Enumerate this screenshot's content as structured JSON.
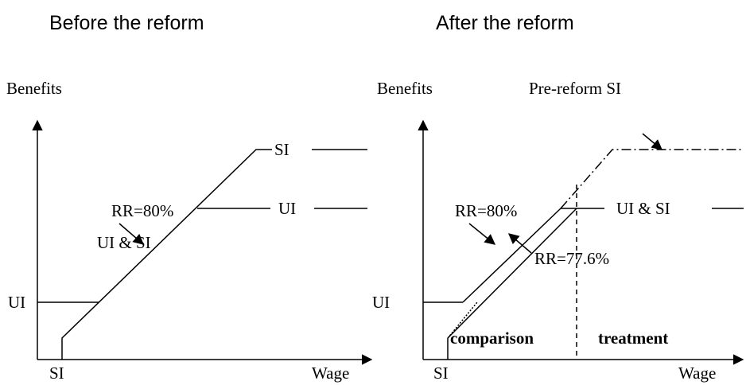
{
  "left": {
    "title": "Before the reform",
    "y_axis": "Benefits",
    "x_axis": "Wage",
    "x_tick": "SI",
    "y_tick": "UI",
    "labels": {
      "si": "SI",
      "ui": "UI",
      "ui_si": "UI & SI",
      "rr": "RR=80%"
    }
  },
  "right": {
    "title": "After the reform",
    "y_axis": "Benefits",
    "x_axis": "Wage",
    "x_tick": "SI",
    "y_tick": "UI",
    "labels": {
      "pre_reform": "Pre-reform SI",
      "ui_si": "UI & SI",
      "rr_old": "RR=80%",
      "rr_new": "RR=77.6%",
      "comparison": "comparison",
      "treatment": "treatment"
    }
  }
}
